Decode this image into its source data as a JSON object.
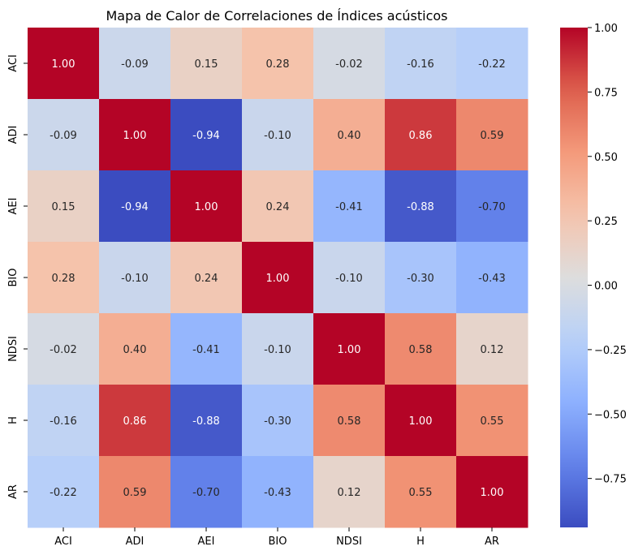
{
  "chart_data": {
    "type": "heatmap",
    "title": "Mapa de Calor de Correlaciones de Índices acústicos",
    "x_categories": [
      "ACI",
      "ADI",
      "AEI",
      "BIO",
      "NDSI",
      "H",
      "AR"
    ],
    "y_categories": [
      "ACI",
      "ADI",
      "AEI",
      "BIO",
      "NDSI",
      "H",
      "AR"
    ],
    "values": [
      [
        1.0,
        -0.09,
        0.15,
        0.28,
        -0.02,
        -0.16,
        -0.22
      ],
      [
        -0.09,
        1.0,
        -0.94,
        -0.1,
        0.4,
        0.86,
        0.59
      ],
      [
        0.15,
        -0.94,
        1.0,
        0.24,
        -0.41,
        -0.88,
        -0.7
      ],
      [
        0.28,
        -0.1,
        0.24,
        1.0,
        -0.1,
        -0.3,
        -0.43
      ],
      [
        -0.02,
        0.4,
        -0.41,
        -0.1,
        1.0,
        0.58,
        0.12
      ],
      [
        -0.16,
        0.86,
        -0.88,
        -0.3,
        0.58,
        1.0,
        0.55
      ],
      [
        -0.22,
        0.59,
        -0.7,
        -0.43,
        0.12,
        0.55,
        1.0
      ]
    ],
    "colormap": "coolwarm",
    "vmin": -0.94,
    "vmax": 1.0,
    "annotation_format": "0.00",
    "colorbar_ticks": [
      "1.00",
      "0.75",
      "0.50",
      "0.25",
      "0.00",
      "−0.25",
      "−0.50",
      "−0.75"
    ],
    "colorbar_tick_values": [
      1.0,
      0.75,
      0.5,
      0.25,
      0.0,
      -0.25,
      -0.5,
      -0.75
    ]
  }
}
